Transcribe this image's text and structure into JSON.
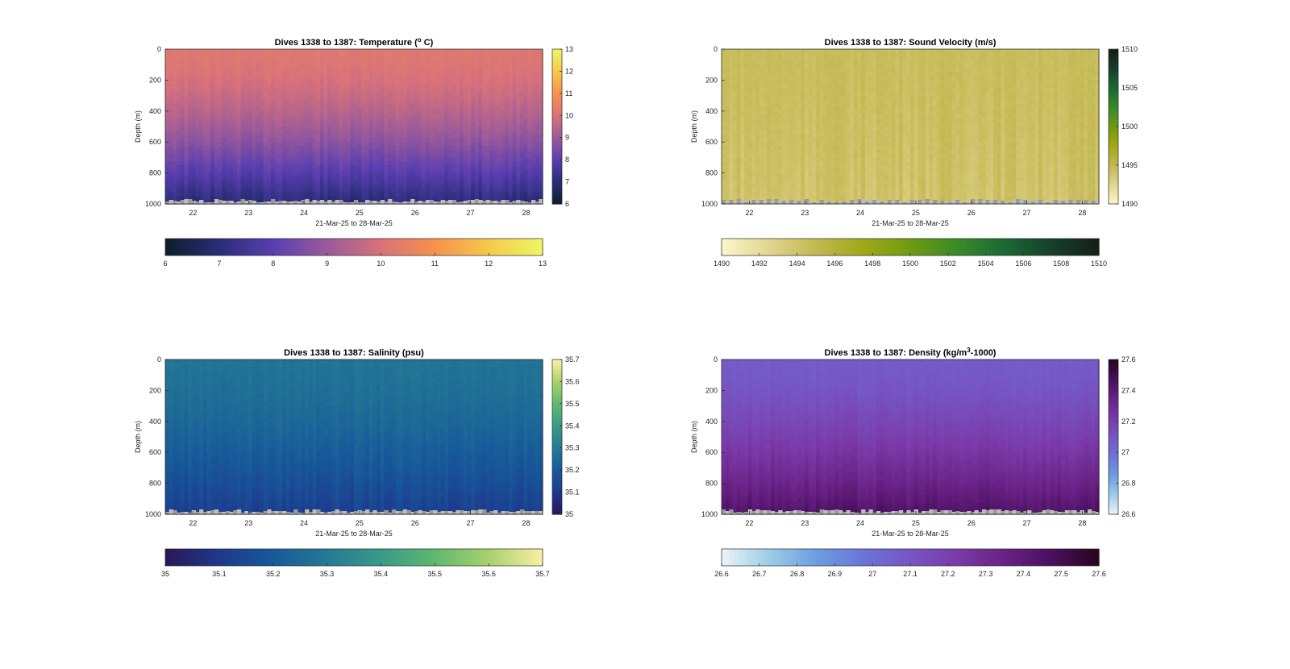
{
  "chart_data": [
    {
      "type": "heatmap",
      "title": "Dives 1338 to 1387: Temperature (",
      "title_super": "o",
      "title_rest": " C)",
      "xlabel": "21-Mar-25 to 28-Mar-25",
      "ylabel": "Depth (m)",
      "x_ticks": [
        "22",
        "23",
        "24",
        "25",
        "26",
        "27",
        "28"
      ],
      "xlim": [
        21.5,
        28.3
      ],
      "y_ticks": [
        "0",
        "200",
        "400",
        "600",
        "800",
        "1000"
      ],
      "ylim": [
        0,
        1000
      ],
      "colorbar_right_ticks": [
        "13",
        "12",
        "11",
        "10",
        "9",
        "8",
        "7",
        "6"
      ],
      "colorbar_bottom_ticks": [
        "6",
        "7",
        "8",
        "9",
        "10",
        "11",
        "12",
        "13"
      ],
      "clim": [
        6,
        13
      ],
      "colormap": [
        "#0d1f2d",
        "#2a2d7a",
        "#5a3fb0",
        "#9a5a9a",
        "#d8727a",
        "#f7904d",
        "#f5c84a",
        "#eef562"
      ],
      "profile": {
        "surface": 10.2,
        "bottom": 7.0
      },
      "series": [
        {
          "name": "",
          "values": []
        }
      ]
    },
    {
      "type": "heatmap",
      "title": "Dives 1338 to 1387: Sound Velocity (m/s)",
      "title_super": "",
      "title_rest": "",
      "xlabel": "21-Mar-25 to 28-Mar-25",
      "ylabel": "Depth (m)",
      "x_ticks": [
        "22",
        "23",
        "24",
        "25",
        "26",
        "27",
        "28"
      ],
      "xlim": [
        21.5,
        28.3
      ],
      "y_ticks": [
        "0",
        "200",
        "400",
        "600",
        "800",
        "1000"
      ],
      "ylim": [
        0,
        1000
      ],
      "colorbar_right_ticks": [
        "1510",
        "1505",
        "1500",
        "1495",
        "1490"
      ],
      "colorbar_bottom_ticks": [
        "1490",
        "1492",
        "1494",
        "1496",
        "1498",
        "1500",
        "1502",
        "1504",
        "1506",
        "1508",
        "1510"
      ],
      "clim": [
        1490,
        1510
      ],
      "colormap": [
        "#fcf5c8",
        "#e0d48e",
        "#c2b750",
        "#a1a818",
        "#6e9b10",
        "#3a8a28",
        "#1a6a34",
        "#17402a",
        "#142018"
      ],
      "profile": {
        "surface": 1494.5,
        "bottom": 1494.0
      },
      "series": [
        {
          "name": "",
          "values": []
        }
      ]
    },
    {
      "type": "heatmap",
      "title": "Dives 1338 to 1387: Salinity (psu)",
      "title_super": "",
      "title_rest": "",
      "xlabel": "21-Mar-25 to 28-Mar-25",
      "ylabel": "Depth (m)",
      "x_ticks": [
        "22",
        "23",
        "24",
        "25",
        "26",
        "27",
        "28"
      ],
      "xlim": [
        21.5,
        28.3
      ],
      "y_ticks": [
        "0",
        "200",
        "400",
        "600",
        "800",
        "1000"
      ],
      "ylim": [
        0,
        1000
      ],
      "colorbar_right_ticks": [
        "35.7",
        "35.6",
        "35.5",
        "35.4",
        "35.3",
        "35.2",
        "35.1",
        "35"
      ],
      "colorbar_bottom_ticks": [
        "35",
        "35.1",
        "35.2",
        "35.3",
        "35.4",
        "35.5",
        "35.6",
        "35.7"
      ],
      "clim": [
        35,
        35.7
      ],
      "colormap": [
        "#2a1858",
        "#1d3a8e",
        "#175a9a",
        "#257a94",
        "#399a88",
        "#5eb86e",
        "#a6d06c",
        "#f6eea0"
      ],
      "profile": {
        "surface": 35.28,
        "bottom": 35.12
      },
      "series": [
        {
          "name": "",
          "values": []
        }
      ]
    },
    {
      "type": "heatmap",
      "title": "Dives 1338 to 1387: Density (kg/m",
      "title_super": "3",
      "title_rest": "-1000)",
      "xlabel": "21-Mar-25 to 28-Mar-25",
      "ylabel": "Depth (m)",
      "x_ticks": [
        "22",
        "23",
        "24",
        "25",
        "26",
        "27",
        "28"
      ],
      "xlim": [
        21.5,
        28.3
      ],
      "y_ticks": [
        "0",
        "200",
        "400",
        "600",
        "800",
        "1000"
      ],
      "ylim": [
        0,
        1000
      ],
      "colorbar_right_ticks": [
        "27.6",
        "27.4",
        "27.2",
        "27",
        "26.8",
        "26.6"
      ],
      "colorbar_bottom_ticks": [
        "26.6",
        "26.7",
        "26.8",
        "26.9",
        "27",
        "27.1",
        "27.2",
        "27.3",
        "27.4",
        "27.5",
        "27.6"
      ],
      "clim": [
        26.6,
        27.6
      ],
      "colormap": [
        "#e8f2f4",
        "#9ccbe8",
        "#6a9ee0",
        "#6b74d8",
        "#7656c4",
        "#7a3aa8",
        "#6a2286",
        "#4a1060",
        "#2a0420"
      ],
      "profile": {
        "surface": 27.08,
        "bottom": 27.45
      },
      "series": [
        {
          "name": "",
          "values": []
        }
      ]
    }
  ]
}
